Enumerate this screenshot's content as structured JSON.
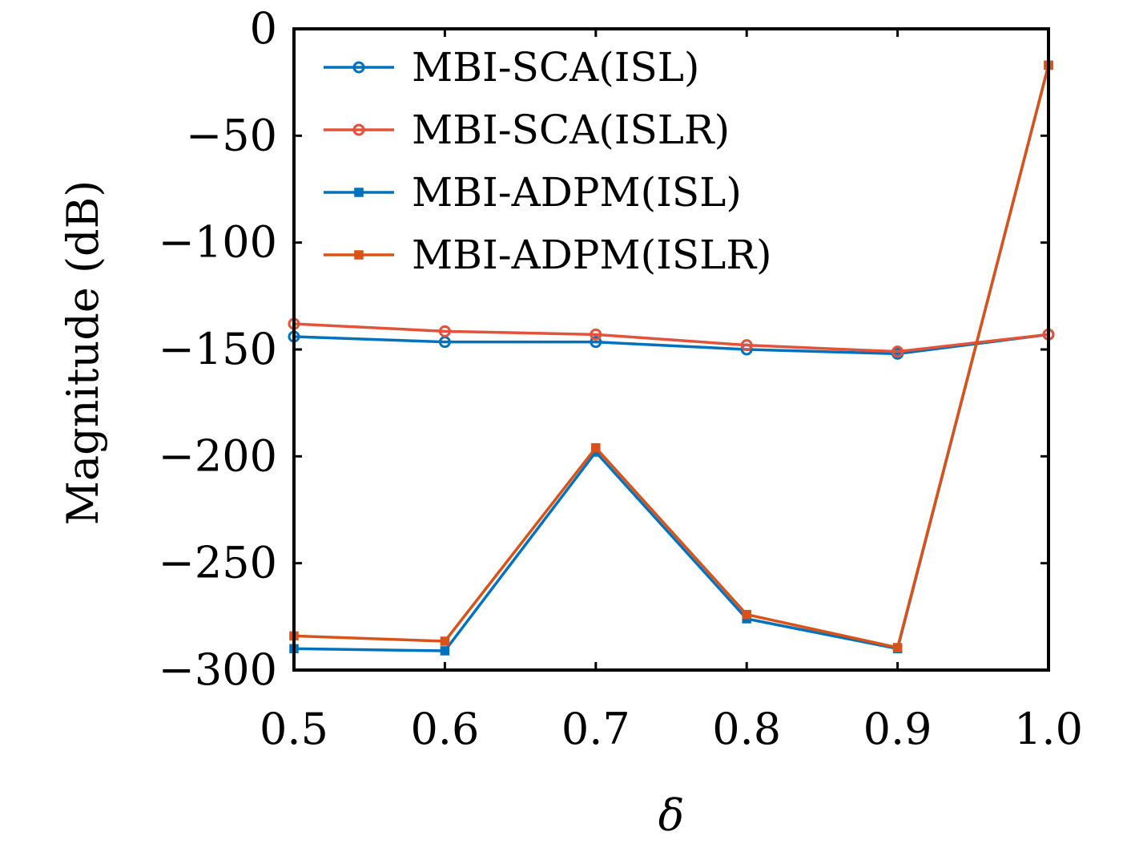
{
  "chart_data": {
    "type": "line",
    "xlabel": "δ",
    "ylabel": "Magnitude (dB)",
    "x": [
      0.5,
      0.6,
      0.7,
      0.8,
      0.9,
      1.0
    ],
    "xticks": [
      "0.5",
      "0.6",
      "0.7",
      "0.8",
      "0.9",
      "1.0"
    ],
    "yticks": [
      "0",
      "−50",
      "−100",
      "−150",
      "−200",
      "−250",
      "−300"
    ],
    "xlim": [
      0.5,
      1.0
    ],
    "ylim": [
      -300,
      0
    ],
    "grid": false,
    "legend_position": "top-right",
    "series": [
      {
        "name": "MBI-SCA(ISL)",
        "color": "#0072BD",
        "marker": "circle",
        "values": [
          -144,
          -146.5,
          -146.5,
          -150,
          -152,
          -143
        ]
      },
      {
        "name": "MBI-SCA(ISLR)",
        "color": "#E2533A",
        "marker": "circle",
        "values": [
          -138,
          -141.5,
          -143,
          -148,
          -151,
          -143
        ]
      },
      {
        "name": "MBI-ADPM(ISL)",
        "color": "#0072BD",
        "marker": "square",
        "values": [
          -290,
          -291,
          -198,
          -276,
          -290,
          -17
        ]
      },
      {
        "name": "MBI-ADPM(ISLR)",
        "color": "#D95319",
        "marker": "square",
        "values": [
          -284,
          -286.5,
          -196,
          -274,
          -289.5,
          -17
        ]
      }
    ]
  }
}
